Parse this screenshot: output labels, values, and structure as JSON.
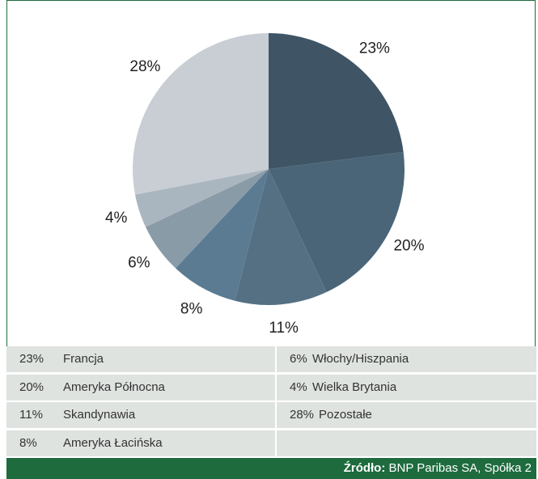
{
  "chart_data": {
    "type": "pie",
    "categories": [
      "Francja",
      "Ameryka Północna",
      "Skandynawia",
      "Ameryka Łacińska",
      "Włochy/Hiszpania",
      "Wielka Brytania",
      "Pozostałe"
    ],
    "values": [
      23,
      20,
      11,
      8,
      6,
      4,
      28
    ],
    "value_labels": [
      "23%",
      "20%",
      "11%",
      "8%",
      "6%",
      "4%",
      "28%"
    ],
    "colors": [
      "#3f5565",
      "#4a6578",
      "#557083",
      "#5b7b93",
      "#8a9ba8",
      "#aab6bf",
      "#c8ced4"
    ],
    "source_label": "Źródło:",
    "source": "BNP Paribas SA, Spółka 2"
  }
}
